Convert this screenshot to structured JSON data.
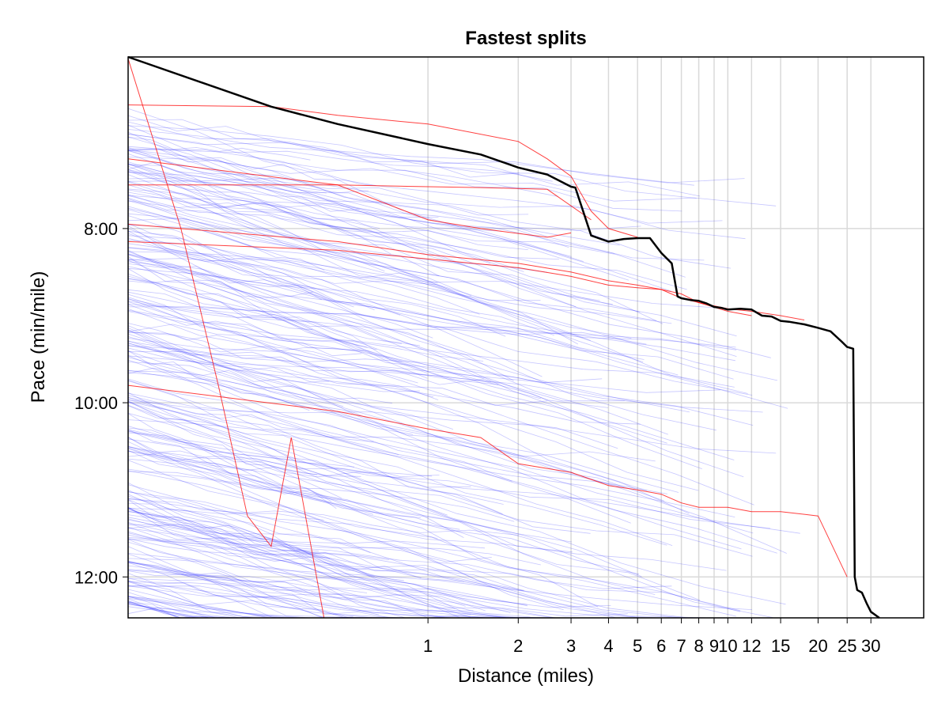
{
  "chart_data": {
    "type": "line",
    "title": "Fastest splits",
    "xlabel": "Distance (miles)",
    "ylabel": "Pace (min/mile)",
    "x_scale": "log",
    "xlim": [
      0.1,
      45
    ],
    "ylim_minutes": [
      6.03,
      12.47
    ],
    "y_reversed": true,
    "grid": true,
    "x_ticks": [
      {
        "value": 1,
        "label": "1"
      },
      {
        "value": 2,
        "label": "2"
      },
      {
        "value": 3,
        "label": "3"
      },
      {
        "value": 4,
        "label": "4"
      },
      {
        "value": 5,
        "label": "5"
      },
      {
        "value": 6,
        "label": "6"
      },
      {
        "value": 7,
        "label": "7"
      },
      {
        "value": 8,
        "label": "8"
      },
      {
        "value": 9,
        "label": "9"
      },
      {
        "value": 10,
        "label": "10"
      },
      {
        "value": 12,
        "label": "12"
      },
      {
        "value": 15,
        "label": "15"
      },
      {
        "value": 20,
        "label": "20"
      },
      {
        "value": 25,
        "label": "25"
      },
      {
        "value": 30,
        "label": "30"
      }
    ],
    "y_ticks": [
      {
        "value": 8,
        "label": "8:00"
      },
      {
        "value": 10,
        "label": "10:00"
      },
      {
        "value": 12,
        "label": "12:00"
      }
    ],
    "colors": {
      "best": "#000000",
      "highlight": "#ff0000",
      "background_runs": "#3333ff",
      "grid": "#d9d9d9"
    },
    "best_series": {
      "x": [
        0.1,
        0.3,
        0.5,
        1,
        1.5,
        2,
        2.5,
        3,
        3.1,
        3.5,
        4,
        4.5,
        5,
        5.5,
        6,
        6.5,
        6.8,
        7,
        7.5,
        8,
        8.5,
        9,
        9.5,
        10,
        11,
        12,
        13,
        14,
        15,
        16,
        18,
        20,
        22,
        24,
        25,
        26.2,
        26.5,
        27,
        28,
        29,
        30,
        32
      ],
      "y": [
        6.03,
        6.6,
        6.8,
        7.03,
        7.15,
        7.3,
        7.38,
        7.52,
        7.53,
        8.08,
        8.15,
        8.12,
        8.11,
        8.11,
        8.28,
        8.4,
        8.78,
        8.8,
        8.82,
        8.83,
        8.86,
        8.9,
        8.91,
        8.93,
        8.92,
        8.93,
        9.0,
        9.01,
        9.06,
        9.07,
        9.1,
        9.14,
        9.18,
        9.3,
        9.36,
        9.38,
        12.0,
        12.15,
        12.18,
        12.3,
        12.4,
        12.47
      ]
    },
    "highlight_series": [
      {
        "x": [
          0.1,
          0.15,
          0.2,
          0.25,
          0.3,
          0.35,
          0.4,
          0.45
        ],
        "y": [
          6.05,
          8.0,
          9.8,
          11.3,
          11.65,
          10.4,
          11.5,
          12.47
        ]
      },
      {
        "x": [
          0.1,
          0.3,
          0.5,
          1,
          2,
          2.5,
          3,
          3.5,
          4,
          5
        ],
        "y": [
          6.58,
          6.6,
          6.7,
          6.8,
          7.0,
          7.2,
          7.4,
          7.8,
          8.0,
          8.1
        ]
      },
      {
        "x": [
          0.1,
          0.5,
          1,
          1.5,
          2.5,
          3.0
        ],
        "y": [
          7.2,
          7.5,
          7.9,
          8.0,
          8.1,
          8.05
        ]
      },
      {
        "x": [
          0.1,
          0.5,
          1,
          1.5,
          2.5,
          3.5
        ],
        "y": [
          7.5,
          7.5,
          7.52,
          7.53,
          7.55,
          7.9
        ]
      },
      {
        "x": [
          0.1,
          0.5,
          1,
          2,
          3,
          4,
          5,
          6,
          7,
          8,
          10,
          12
        ],
        "y": [
          7.95,
          8.15,
          8.3,
          8.4,
          8.5,
          8.6,
          8.65,
          8.7,
          8.8,
          8.85,
          8.95,
          9.0
        ]
      },
      {
        "x": [
          0.1,
          0.5,
          1,
          2,
          3,
          4,
          5,
          6,
          7,
          8,
          10,
          12,
          15,
          18
        ],
        "y": [
          8.15,
          8.25,
          8.35,
          8.45,
          8.55,
          8.65,
          8.68,
          8.7,
          8.75,
          8.85,
          8.92,
          8.95,
          9.0,
          9.05
        ]
      },
      {
        "x": [
          0.1,
          0.5,
          1,
          1.5,
          2,
          3,
          4,
          5,
          6,
          7,
          8,
          10,
          12,
          15,
          20,
          25
        ],
        "y": [
          9.8,
          10.1,
          10.3,
          10.4,
          10.7,
          10.8,
          10.95,
          11.0,
          11.05,
          11.15,
          11.2,
          11.2,
          11.25,
          11.25,
          11.3,
          12.0
        ]
      }
    ]
  }
}
